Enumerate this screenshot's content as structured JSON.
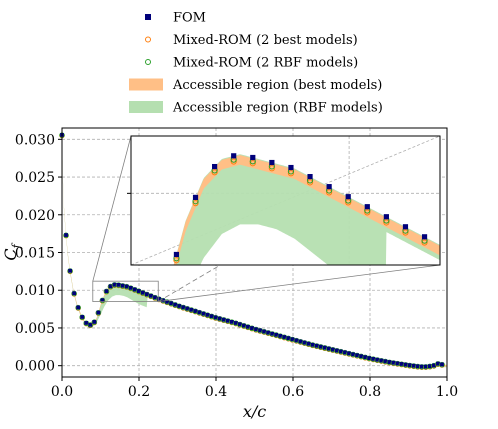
{
  "chart_data": {
    "type": "scatter",
    "xlabel": "x/c",
    "ylabel": "C_f",
    "xlim": [
      0.0,
      1.0
    ],
    "ylim": [
      -0.0015,
      0.0315
    ],
    "xticks": [
      0.0,
      0.2,
      0.4,
      0.6,
      0.8,
      1.0
    ],
    "xtick_labels": [
      "0.0",
      "0.2",
      "0.4",
      "0.6",
      "0.8",
      "1.0"
    ],
    "yticks": [
      0.0,
      0.005,
      0.01,
      0.015,
      0.02,
      0.025,
      0.03
    ],
    "ytick_labels": [
      "0.000",
      "0.005",
      "0.010",
      "0.015",
      "0.020",
      "0.025",
      "0.030"
    ],
    "grid": true,
    "legend_position": "top-center",
    "colors": {
      "fom": "#00007a",
      "mixed_best": "#ff7f0e",
      "mixed_rbf": "#2ca02c",
      "region_best": "#ffbf86",
      "region_rbf": "#b5dfb0"
    },
    "legend": [
      {
        "key": "fom",
        "label": "FOM",
        "marker": "square"
      },
      {
        "key": "mixed_best",
        "label": "Mixed-ROM (2 best models)",
        "marker": "hollow-circle"
      },
      {
        "key": "mixed_rbf",
        "label": "Mixed-ROM (2 RBF models)",
        "marker": "hollow-circle"
      },
      {
        "key": "region_best",
        "label": "Accessible region (best models)",
        "marker": "patch"
      },
      {
        "key": "region_rbf",
        "label": "Accessible region (RBF models)",
        "marker": "patch"
      }
    ],
    "curve": {
      "x": [
        0.0,
        0.002,
        0.005,
        0.01,
        0.015,
        0.02,
        0.03,
        0.04,
        0.05,
        0.06,
        0.07,
        0.08,
        0.09,
        0.1,
        0.11,
        0.12,
        0.13,
        0.14,
        0.15,
        0.16,
        0.17,
        0.18,
        0.2,
        0.22,
        0.25,
        0.3,
        0.35,
        0.4,
        0.45,
        0.5,
        0.55,
        0.6,
        0.65,
        0.7,
        0.75,
        0.8,
        0.85,
        0.9,
        0.93,
        0.95,
        0.97,
        0.98,
        0.99,
        1.0
      ],
      "y": [
        0.0305,
        0.025,
        0.021,
        0.0175,
        0.0148,
        0.0128,
        0.0098,
        0.0079,
        0.0066,
        0.0057,
        0.0053,
        0.0054,
        0.0062,
        0.0079,
        0.0093,
        0.0102,
        0.0106,
        0.0107,
        0.0106,
        0.0105,
        0.0104,
        0.0102,
        0.0098,
        0.0094,
        0.0088,
        0.0079,
        0.0071,
        0.0063,
        0.0056,
        0.0048,
        0.0041,
        0.0034,
        0.0027,
        0.0021,
        0.0015,
        0.0009,
        0.0004,
        0.0,
        -0.0002,
        -0.0002,
        0.0,
        0.0003,
        0.0,
        0.0
      ],
      "rbf_lower": {
        "x": [
          0.07,
          0.08,
          0.09,
          0.1,
          0.11,
          0.12,
          0.13,
          0.14,
          0.15,
          0.16,
          0.17,
          0.18,
          0.19,
          0.2,
          0.22
        ],
        "y": [
          0.0051,
          0.0052,
          0.0058,
          0.0068,
          0.0079,
          0.0087,
          0.0092,
          0.0094,
          0.0094,
          0.0093,
          0.0091,
          0.0088,
          0.0085,
          0.0082,
          0.0078
        ]
      }
    },
    "fom_sample_step": 0.0105,
    "inset": {
      "xlim": [
        0.08,
        0.25
      ],
      "ylim": [
        0.0085,
        0.0112
      ],
      "ytick_values": [
        0.01
      ]
    }
  }
}
